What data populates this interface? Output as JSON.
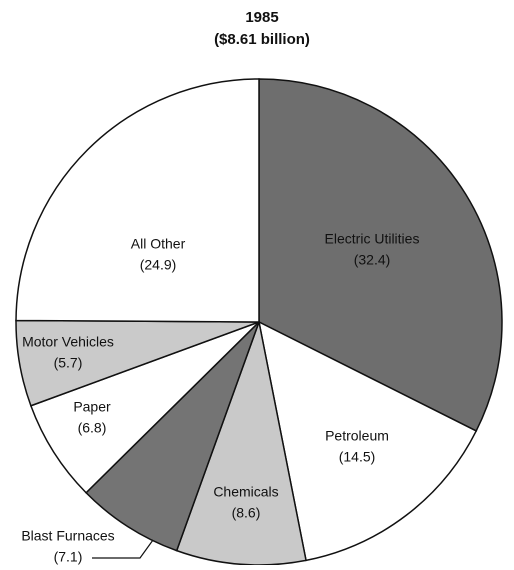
{
  "chart_data": {
    "type": "pie",
    "title": "1985",
    "subtitle": "($8.61 billion)",
    "categories": [
      "Electric Utilities",
      "Petroleum",
      "Chemicals",
      "Blast Furnaces",
      "Paper",
      "Motor Vehicles",
      "All Other"
    ],
    "values": [
      32.4,
      14.5,
      8.6,
      7.1,
      6.8,
      5.7,
      24.9
    ],
    "value_labels": [
      "(32.4)",
      "(14.5)",
      "(8.6)",
      "(7.1)",
      "(6.8)",
      "(5.7)",
      "(24.9)"
    ],
    "colors": [
      "#6e6e6e",
      "#ffffff",
      "#c9c9c9",
      "#747474",
      "#ffffff",
      "#cacaca",
      "#ffffff"
    ]
  }
}
